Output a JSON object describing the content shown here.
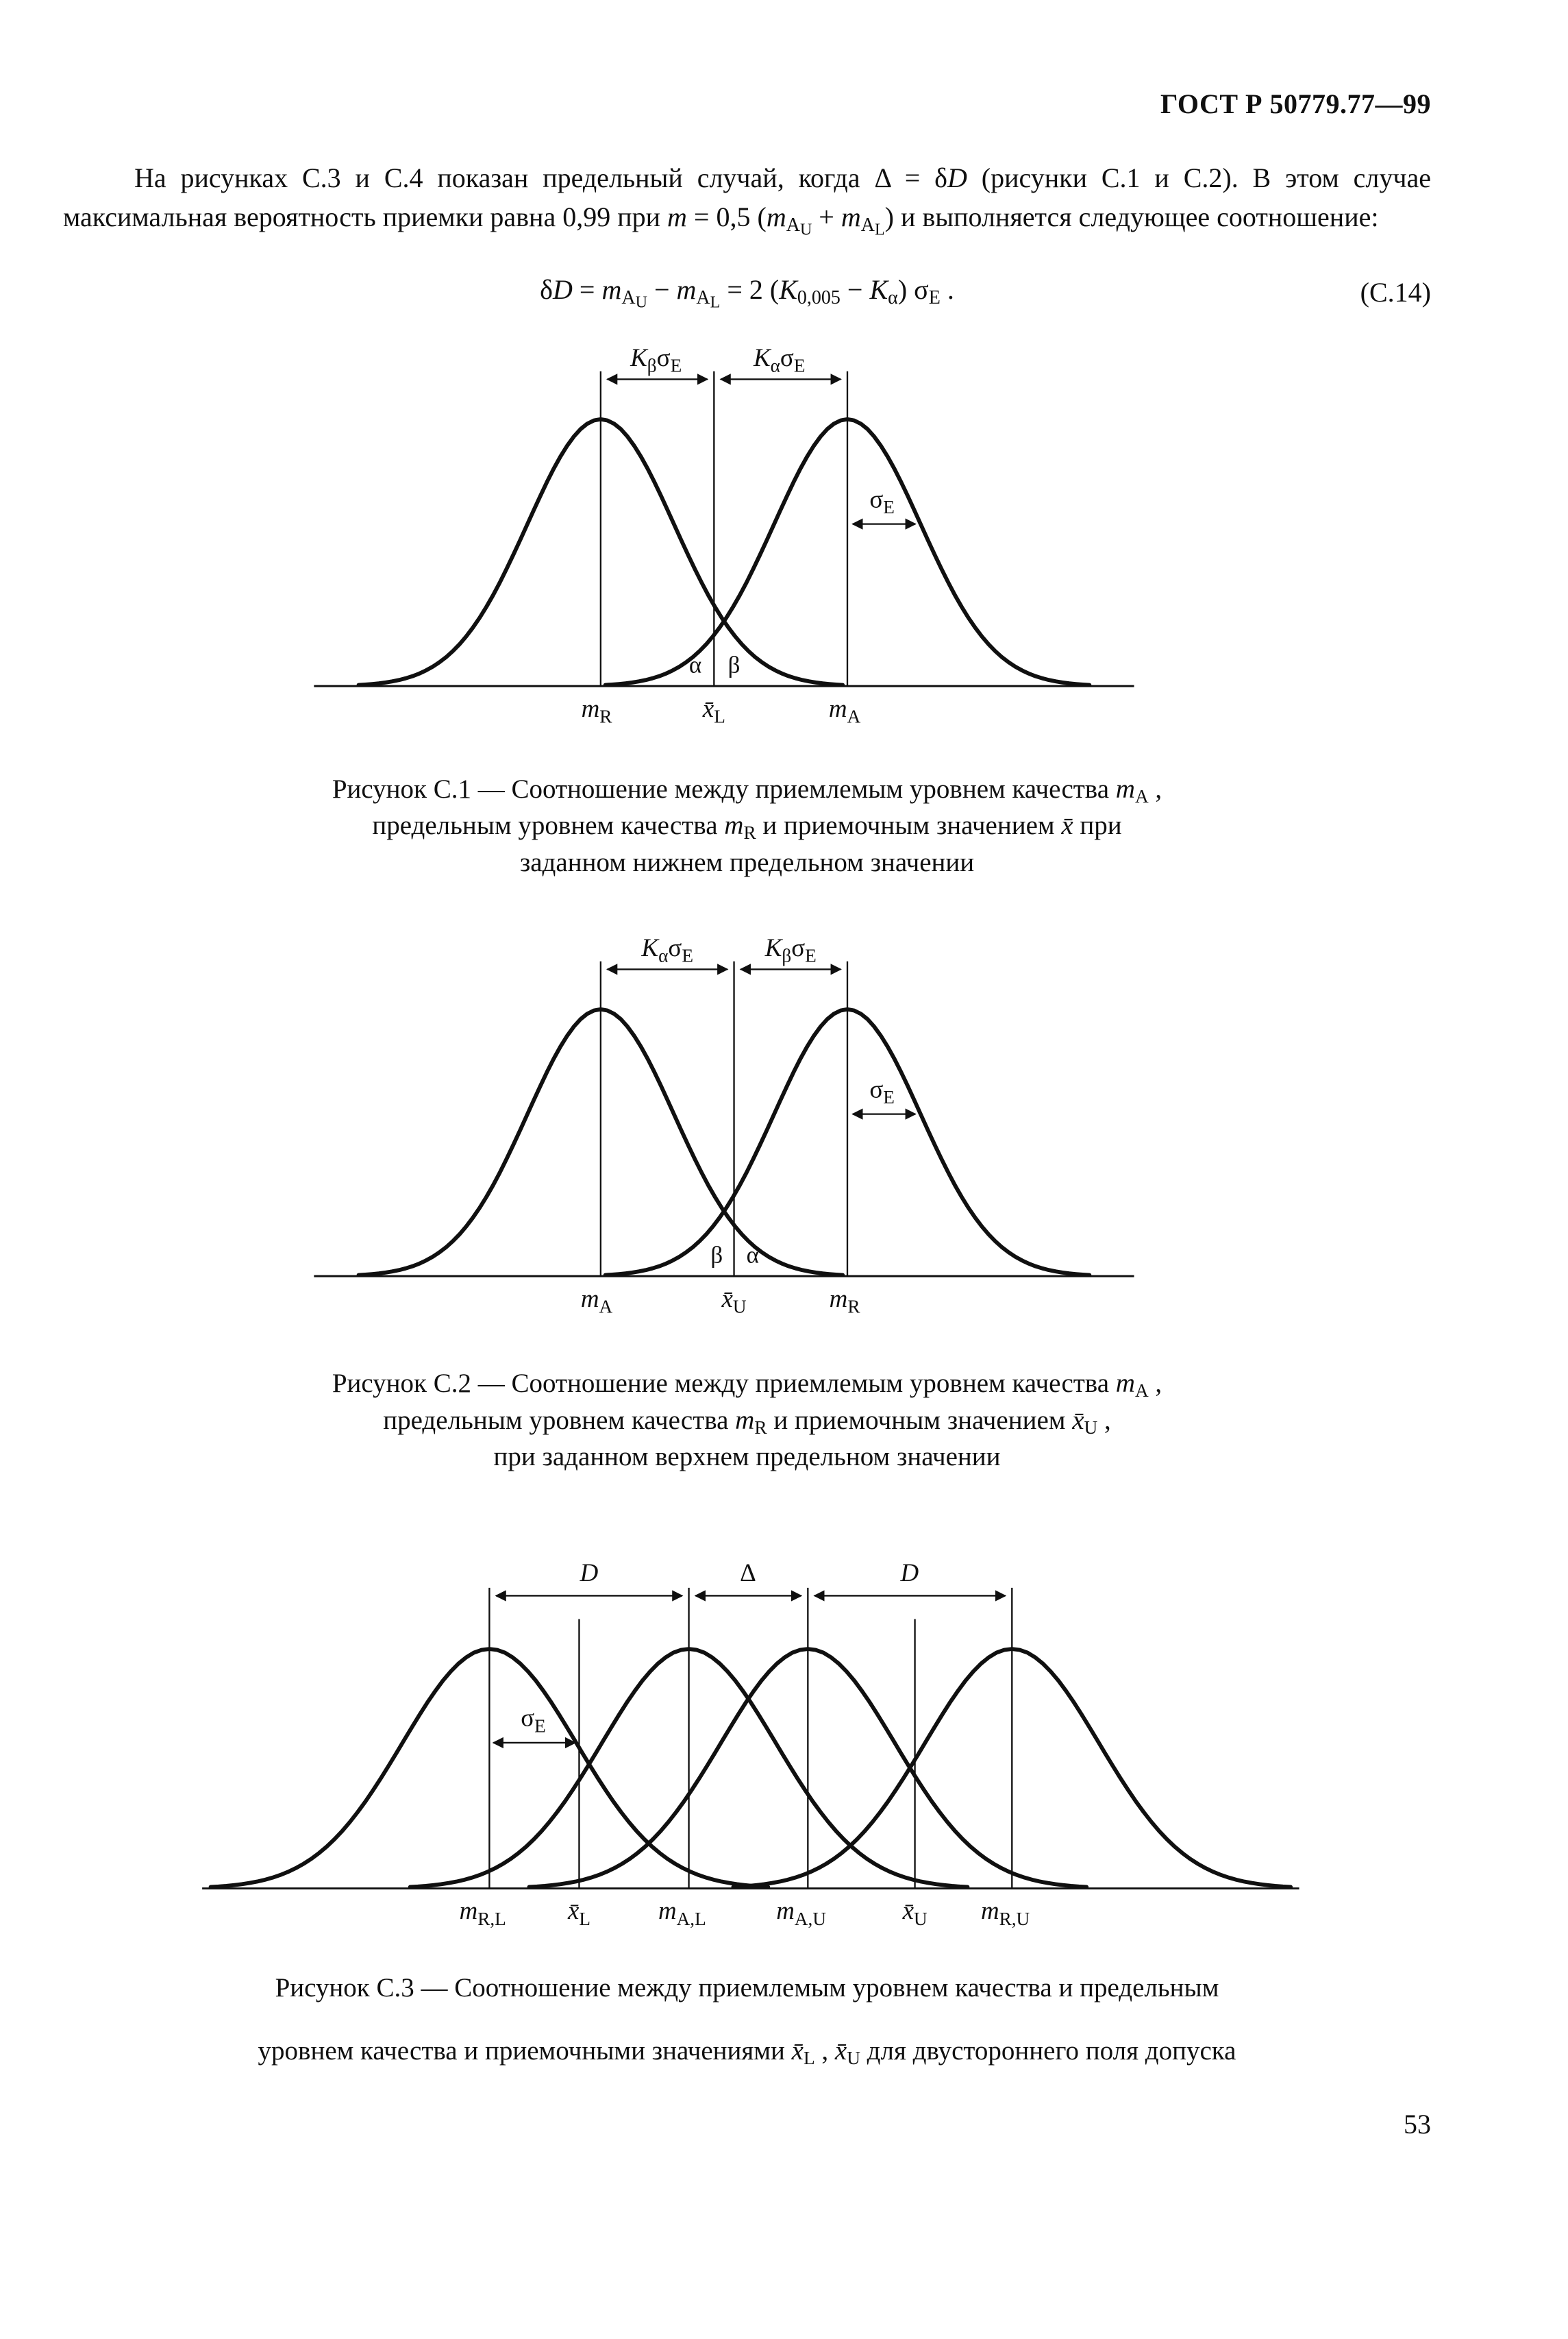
{
  "header": {
    "doc_number": "ГОСТ Р 50779.77—99"
  },
  "para": {
    "t1": "На рисунках С.3 и С.4 показан предельный случай, когда Δ = δ",
    "t2": "D",
    "t3": " (рисунки С.1 и С.2). В этом случае максимальная вероятность приемки равна 0,99 при ",
    "t4": "m",
    "t5": " = 0,5 (",
    "t6": "m",
    "t6s": "A",
    "t6ss": "U",
    "t7": " + ",
    "t8": "m",
    "t8s": "A",
    "t8ss": "L",
    "t9": ") и выполняется следующее соотношение:"
  },
  "formula": {
    "delta": "δ",
    "D": "D",
    "eq1": " = ",
    "m1": "m",
    "m1s": "A",
    "m1ss": "U",
    "minus1": " − ",
    "m2": "m",
    "m2s": "A",
    "m2ss": "L",
    "eq2": " = 2 (",
    "K1": "K",
    "K1s": "0,005",
    "minus2": " − ",
    "K2": "K",
    "K2s": "α",
    "close": ") σ",
    "sigsub": "E",
    "dot": " .",
    "number": "(С.14)"
  },
  "fig1": {
    "kl": {
      "K": "K",
      "ks": "β",
      "sg": "σ",
      "ss": "E"
    },
    "kr": {
      "K": "K",
      "ks": "α",
      "sg": "σ",
      "ss": "E"
    },
    "se": {
      "sg": "σ",
      "ss": "E"
    },
    "alpha": "α",
    "beta": "β",
    "ax1m": "m",
    "ax1s": "R",
    "ax2x": "x̄",
    "ax2s": "L",
    "ax3m": "m",
    "ax3s": "A"
  },
  "fig2": {
    "kl": {
      "K": "K",
      "ks": "α",
      "sg": "σ",
      "ss": "E"
    },
    "kr": {
      "K": "K",
      "ks": "β",
      "sg": "σ",
      "ss": "E"
    },
    "se": {
      "sg": "σ",
      "ss": "E"
    },
    "alpha": "α",
    "beta": "β",
    "ax1m": "m",
    "ax1s": "A",
    "ax2x": "x̄",
    "ax2s": "U",
    "ax3m": "m",
    "ax3s": "R"
  },
  "fig3": {
    "d1": "D",
    "delta": "Δ",
    "d2": "D",
    "se": {
      "sg": "σ",
      "ss": "E"
    },
    "ax1m": "m",
    "ax1s": "R,L",
    "ax2x": "x̄",
    "ax2s": "L",
    "ax3m": "m",
    "ax3s": "A,L",
    "ax4m": "m",
    "ax4s": "A,U",
    "ax5x": "x̄",
    "ax5s": "U",
    "ax6m": "m",
    "ax6s": "R,U"
  },
  "captions": {
    "c1": {
      "l1a": "Рисунок С.1 — Соотношение между приемлемым уровнем качества ",
      "l1m": "m",
      "l1sub": "A",
      "l1b": " ,",
      "l2a": "предельным уровнем качества ",
      "l2m": "m",
      "l2sub": "R",
      "l2b": " и приемочным значением ",
      "l2x": "x̄",
      "l2c": " при",
      "l3": "заданном нижнем предельном значении"
    },
    "c2": {
      "l1a": "Рисунок С.2 — Соотношение между приемлемым уровнем качества ",
      "l1m": "m",
      "l1sub": "A",
      "l1b": " ,",
      "l2a": "предельным уровнем качества ",
      "l2m": "m",
      "l2sub": "R",
      "l2b": " и приемочным значением ",
      "l2x": "x̄",
      "l2xs": "U",
      "l2c": " ,",
      "l3": "при заданном верхнем предельном значении"
    },
    "c3": {
      "l1": "Рисунок С.3 — Соотношение  между  приемлемым  уровнем  качества  и  предельным",
      "l2a": "уровнем качества и приемочными значениями ",
      "l2x1": "x̄",
      "l2s1": "L",
      "l2b": " , ",
      "l2x2": "x̄",
      "l2s2": "U",
      "l2c": " для двустороннего поля допуска"
    }
  },
  "page": {
    "number": "53"
  }
}
